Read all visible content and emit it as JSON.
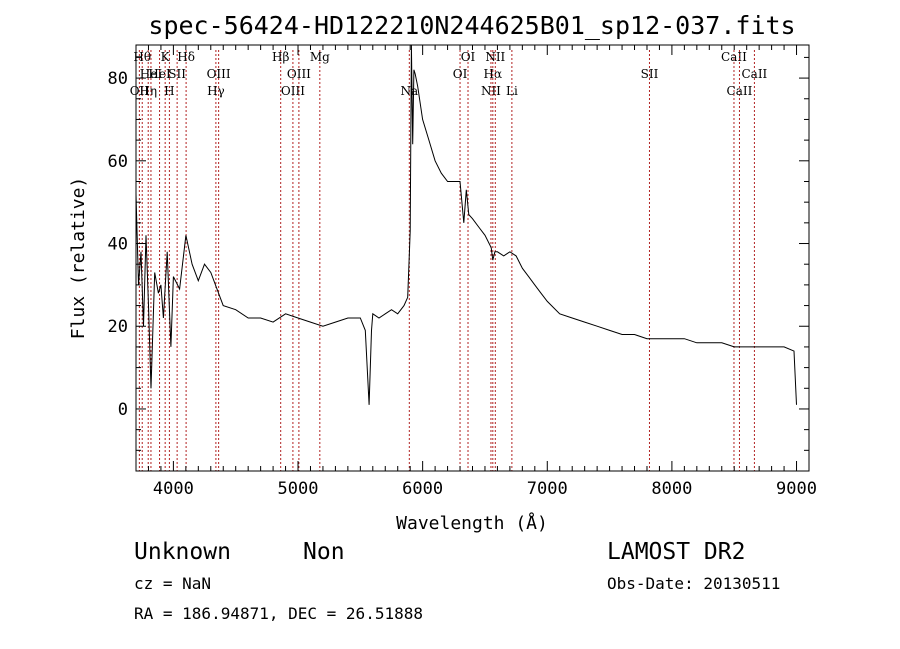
{
  "chart_data": {
    "type": "line",
    "title": "spec-56424-HD122210N244625B01_sp12-037.fits",
    "xlabel": "Wavelength (Å)",
    "ylabel": "Flux (relative)",
    "xlim": [
      3700,
      9100
    ],
    "ylim": [
      -15,
      88
    ],
    "x_ticks": [
      4000,
      5000,
      6000,
      7000,
      8000,
      9000
    ],
    "y_ticks": [
      0,
      20,
      40,
      60,
      80
    ],
    "grid": false,
    "series": [
      {
        "color": "#000000",
        "x": [
          3700,
          3720,
          3740,
          3760,
          3780,
          3800,
          3820,
          3850,
          3880,
          3900,
          3920,
          3950,
          3980,
          4000,
          4050,
          4100,
          4150,
          4200,
          4250,
          4300,
          4400,
          4500,
          4600,
          4700,
          4800,
          4900,
          5000,
          5100,
          5200,
          5300,
          5400,
          5500,
          5540,
          5570,
          5590,
          5600,
          5650,
          5700,
          5750,
          5800,
          5850,
          5880,
          5900,
          5910,
          5920,
          5930,
          5940,
          5960,
          6000,
          6050,
          6100,
          6150,
          6200,
          6250,
          6300,
          6330,
          6350,
          6370,
          6400,
          6450,
          6500,
          6550,
          6563,
          6580,
          6600,
          6650,
          6700,
          6750,
          6800,
          6850,
          6900,
          6950,
          7000,
          7100,
          7200,
          7300,
          7400,
          7500,
          7600,
          7700,
          7800,
          7900,
          8000,
          8100,
          8200,
          8300,
          8400,
          8500,
          8600,
          8700,
          8800,
          8900,
          8980,
          9000
        ],
        "y": [
          52,
          30,
          38,
          20,
          42,
          25,
          5,
          33,
          28,
          30,
          22,
          38,
          15,
          32,
          29,
          42,
          35,
          31,
          35,
          33,
          25,
          24,
          22,
          22,
          21,
          23,
          22,
          21,
          20,
          21,
          22,
          22,
          19,
          1,
          19,
          23,
          22,
          23,
          24,
          23,
          25,
          27,
          43,
          90,
          64,
          82,
          81,
          78,
          70,
          65,
          60,
          57,
          55,
          55,
          55,
          45,
          53,
          47,
          46,
          44,
          42,
          39,
          36,
          38,
          38,
          37,
          38,
          37,
          34,
          32,
          30,
          28,
          26,
          23,
          22,
          21,
          20,
          19,
          18,
          18,
          17,
          17,
          17,
          17,
          16,
          16,
          16,
          15,
          15,
          15,
          15,
          15,
          14,
          1
        ]
      }
    ],
    "spectral_lines": [
      {
        "x": 3727,
        "labels": [
          "OII"
        ],
        "row": 2
      },
      {
        "x": 3750,
        "labels": [
          "Hθ"
        ],
        "row": 0
      },
      {
        "x": 3798,
        "labels": [
          "Hη"
        ],
        "row": 2
      },
      {
        "x": 3820,
        "labels": [
          "HeI"
        ],
        "row": 1
      },
      {
        "x": 3889,
        "labels": [
          "HeI"
        ],
        "row": 1
      },
      {
        "x": 3934,
        "labels": [
          "K"
        ],
        "row": 0
      },
      {
        "x": 3968,
        "labels": [
          "H"
        ],
        "row": 2
      },
      {
        "x": 4030,
        "labels": [
          "SII"
        ],
        "row": 1
      },
      {
        "x": 4102,
        "labels": [
          "Hδ"
        ],
        "row": 0
      },
      {
        "x": 4341,
        "labels": [
          "Hγ"
        ],
        "row": 2
      },
      {
        "x": 4363,
        "labels": [
          "OIII"
        ],
        "row": 1
      },
      {
        "x": 4861,
        "labels": [
          "Hβ"
        ],
        "row": 0
      },
      {
        "x": 4959,
        "labels": [
          "OIII"
        ],
        "row": 2
      },
      {
        "x": 5007,
        "labels": [
          "OIII"
        ],
        "row": 1
      },
      {
        "x": 5175,
        "labels": [
          "Mg"
        ],
        "row": 0
      },
      {
        "x": 5893,
        "labels": [
          "Na"
        ],
        "row": 2
      },
      {
        "x": 6300,
        "labels": [
          "OI"
        ],
        "row": 1
      },
      {
        "x": 6364,
        "labels": [
          "OI"
        ],
        "row": 0
      },
      {
        "x": 6548,
        "labels": [
          "NII"
        ],
        "row": 2
      },
      {
        "x": 6563,
        "labels": [
          "Hα"
        ],
        "row": 1
      },
      {
        "x": 6583,
        "labels": [
          "NII"
        ],
        "row": 0
      },
      {
        "x": 6716,
        "labels": [
          "Li"
        ],
        "row": 2
      },
      {
        "x": 7820,
        "labels": [
          "SII"
        ],
        "row": 1
      },
      {
        "x": 8498,
        "labels": [
          "CaII"
        ],
        "row": 0
      },
      {
        "x": 8542,
        "labels": [
          "CaII"
        ],
        "row": 2
      },
      {
        "x": 8662,
        "labels": [
          "CaII"
        ],
        "row": 1
      }
    ]
  },
  "footer": {
    "class_label": "Unknown",
    "subclass_label": "Non",
    "survey": "LAMOST DR2",
    "cz": "cz = NaN",
    "obs_date": "Obs-Date: 20130511",
    "coords": "RA = 186.94871, DEC =  26.51888"
  }
}
